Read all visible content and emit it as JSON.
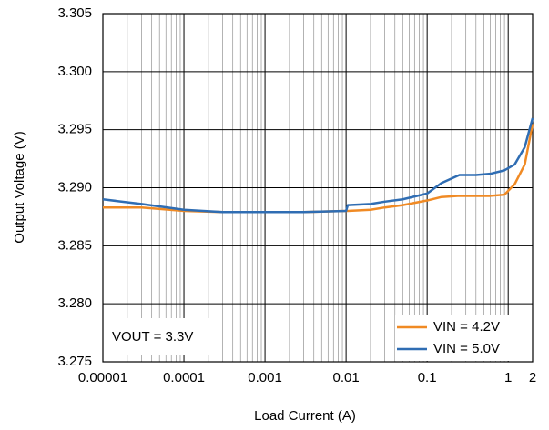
{
  "chart_data": {
    "type": "line",
    "xlabel": "Load Current (A)",
    "ylabel": "Output Voltage (V)",
    "annotation": "VOUT = 3.3V",
    "xscale": "log",
    "grid": true,
    "minor_grid": true,
    "legend": "lower right",
    "xlim": [
      1e-05,
      2
    ],
    "xticks": [
      1e-05,
      0.0001,
      0.001,
      0.01,
      0.1,
      1,
      2
    ],
    "ylim": [
      3.275,
      3.305
    ],
    "yticks": [
      3.275,
      {
        "value": 3.28,
        "label": "3.280"
      },
      3.285,
      {
        "value": 3.29,
        "label": "3.290"
      },
      3.295,
      {
        "value": 3.3,
        "label": "3.300"
      },
      3.305
    ],
    "x": [
      1e-05,
      3e-05,
      0.0001,
      0.0003,
      0.001,
      0.003,
      0.01,
      0.0105,
      0.02,
      0.03,
      0.05,
      0.1,
      0.15,
      0.25,
      0.4,
      0.6,
      0.9,
      1.2,
      1.6,
      2
    ],
    "series": [
      {
        "name": "VIN = 4.2V",
        "color": "#f08a24",
        "values": [
          3.2883,
          3.2883,
          3.288,
          3.2879,
          3.2879,
          3.2879,
          3.288,
          3.288,
          3.2881,
          3.2883,
          3.2885,
          3.2889,
          3.2892,
          3.2893,
          3.2893,
          3.2893,
          3.2894,
          3.2903,
          3.292,
          3.2955
        ]
      },
      {
        "name": "VIN = 5.0V",
        "color": "#2f6db3",
        "values": [
          3.289,
          3.2886,
          3.2881,
          3.2879,
          3.2879,
          3.2879,
          3.288,
          3.2885,
          3.2886,
          3.2888,
          3.289,
          3.2895,
          3.2904,
          3.2911,
          3.2911,
          3.2912,
          3.2915,
          3.292,
          3.2935,
          3.296
        ]
      }
    ]
  }
}
